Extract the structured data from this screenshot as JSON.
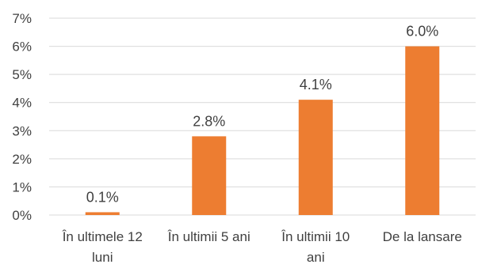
{
  "chart_data": {
    "type": "bar",
    "categories": [
      [
        "În ultimele 12",
        "luni"
      ],
      [
        "În ultimii 5 ani"
      ],
      [
        "În ultimii 10",
        "ani"
      ],
      [
        "De la lansare"
      ]
    ],
    "values": [
      0.1,
      2.8,
      4.1,
      6.0
    ],
    "data_labels": [
      "0.1%",
      "2.8%",
      "4.1%",
      "6.0%"
    ],
    "y_ticks": [
      "0%",
      "1%",
      "2%",
      "3%",
      "4%",
      "5%",
      "6%",
      "7%"
    ],
    "ylim": [
      0,
      7
    ],
    "grid": true,
    "legend": "none",
    "bar_color": "#ED7D31",
    "grid_color": "#D9D9D9"
  }
}
